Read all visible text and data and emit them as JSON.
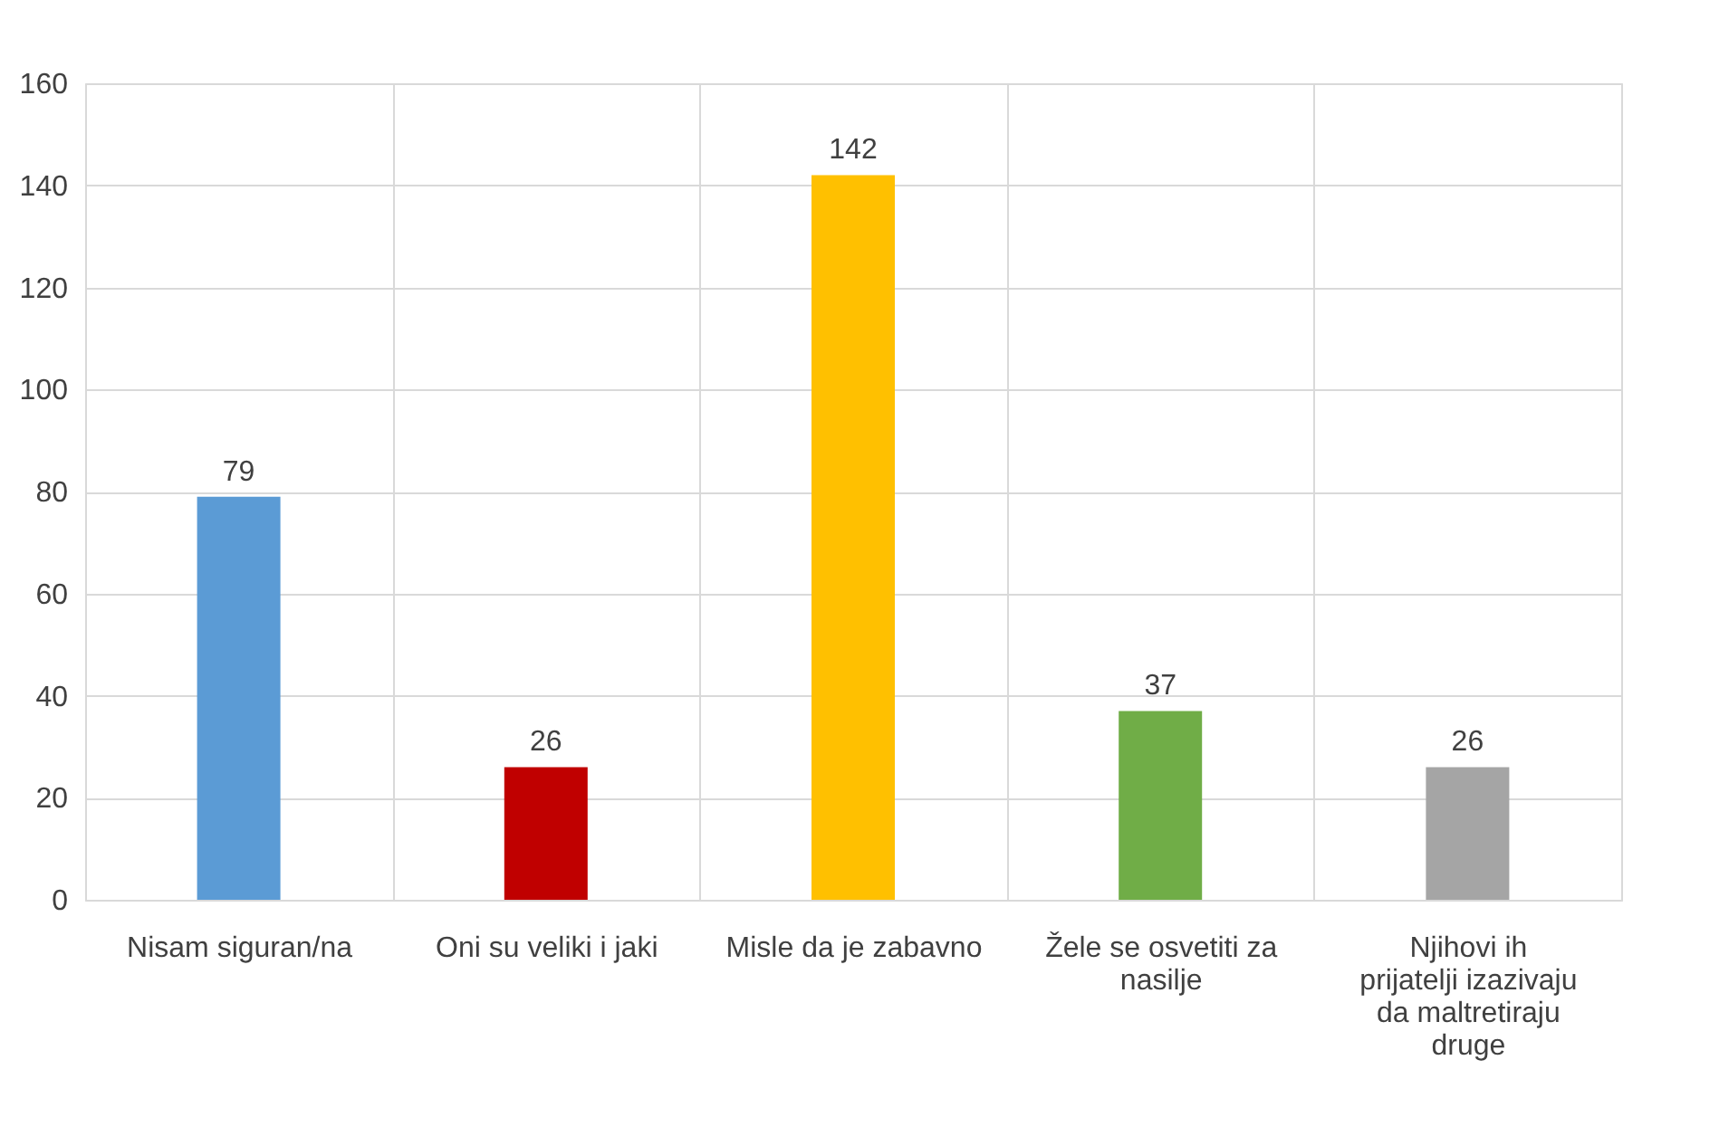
{
  "chart_data": {
    "type": "bar",
    "categories": [
      "Nisam siguran/na",
      "Oni su veliki i jaki",
      "Misle da je zabavno",
      "Žele se osvetiti za nasilje",
      "Njihovi ih prijatelji izazivaju da maltretiraju druge"
    ],
    "values": [
      79,
      26,
      142,
      37,
      26
    ],
    "colors": [
      "#5b9bd5",
      "#c00000",
      "#ffc000",
      "#70ad47",
      "#a5a5a5"
    ],
    "ylim": [
      0,
      160
    ],
    "yticks": [
      0,
      20,
      40,
      60,
      80,
      100,
      120,
      140,
      160
    ],
    "grid": true,
    "data_labels": true
  }
}
